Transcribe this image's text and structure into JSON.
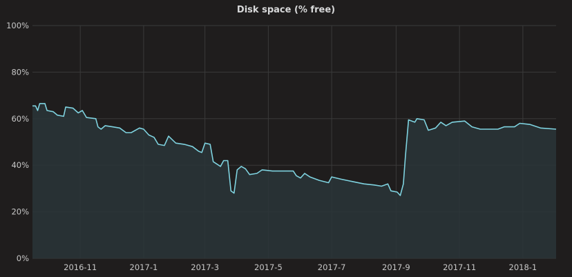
{
  "panel": {
    "title": "Disk space (% free)"
  },
  "colors": {
    "background": "#1f1d1d",
    "grid": "#3a3a3a",
    "line": "#7fd3e0",
    "fill": "#2a3538",
    "text": "#c8c8c8"
  },
  "chart_data": {
    "type": "area",
    "title": "Disk space (% free)",
    "xlabel": "",
    "ylabel": "",
    "grid": true,
    "legend": "none",
    "x_range": [
      "2016-09-16",
      "2018-02-02"
    ],
    "ylim": [
      0,
      100
    ],
    "y_ticks": [
      0,
      20,
      40,
      60,
      80,
      100
    ],
    "y_tick_labels": [
      "0%",
      "20%",
      "40%",
      "60%",
      "80%",
      "100%"
    ],
    "x_ticks": [
      "2016-11-01",
      "2017-01-01",
      "2017-03-01",
      "2017-05-01",
      "2017-07-01",
      "2017-09-01",
      "2017-11-01",
      "2018-01-01"
    ],
    "x_tick_labels": [
      "2016-11",
      "2017-1",
      "2017-3",
      "2017-5",
      "2017-7",
      "2017-9",
      "2017-11",
      "2018-1"
    ],
    "series": [
      {
        "points": [
          [
            "2016-09-16",
            65.5
          ],
          [
            "2016-09-19",
            65.5
          ],
          [
            "2016-09-21",
            63.5
          ],
          [
            "2016-09-23",
            66.5
          ],
          [
            "2016-09-28",
            66.5
          ],
          [
            "2016-09-30",
            63.5
          ],
          [
            "2016-10-06",
            63.0
          ],
          [
            "2016-10-10",
            61.5
          ],
          [
            "2016-10-16",
            61.0
          ],
          [
            "2016-10-18",
            65.0
          ],
          [
            "2016-10-25",
            64.5
          ],
          [
            "2016-10-30",
            62.5
          ],
          [
            "2016-11-03",
            63.5
          ],
          [
            "2016-11-07",
            60.5
          ],
          [
            "2016-11-16",
            60.0
          ],
          [
            "2016-11-18",
            56.5
          ],
          [
            "2016-11-21",
            55.5
          ],
          [
            "2016-11-25",
            57.0
          ],
          [
            "2016-12-02",
            56.5
          ],
          [
            "2016-12-09",
            56.0
          ],
          [
            "2016-12-15",
            54.0
          ],
          [
            "2016-12-20",
            54.0
          ],
          [
            "2016-12-28",
            56.0
          ],
          [
            "2017-01-01",
            55.5
          ],
          [
            "2017-01-06",
            53.0
          ],
          [
            "2017-01-11",
            52.0
          ],
          [
            "2017-01-15",
            49.0
          ],
          [
            "2017-01-21",
            48.5
          ],
          [
            "2017-01-25",
            52.5
          ],
          [
            "2017-02-01",
            49.5
          ],
          [
            "2017-02-09",
            49.0
          ],
          [
            "2017-02-17",
            48.0
          ],
          [
            "2017-02-23",
            46.0
          ],
          [
            "2017-02-26",
            45.5
          ],
          [
            "2017-03-01",
            49.5
          ],
          [
            "2017-03-06",
            49.0
          ],
          [
            "2017-03-09",
            41.5
          ],
          [
            "2017-03-16",
            39.5
          ],
          [
            "2017-03-19",
            42.0
          ],
          [
            "2017-03-23",
            42.0
          ],
          [
            "2017-03-26",
            29.0
          ],
          [
            "2017-03-29",
            28.0
          ],
          [
            "2017-04-01",
            38.0
          ],
          [
            "2017-04-05",
            39.5
          ],
          [
            "2017-04-09",
            38.5
          ],
          [
            "2017-04-13",
            36.0
          ],
          [
            "2017-04-20",
            36.5
          ],
          [
            "2017-04-25",
            38.0
          ],
          [
            "2017-05-05",
            37.5
          ],
          [
            "2017-05-25",
            37.5
          ],
          [
            "2017-05-28",
            35.5
          ],
          [
            "2017-06-01",
            34.5
          ],
          [
            "2017-06-05",
            36.5
          ],
          [
            "2017-06-10",
            35.0
          ],
          [
            "2017-06-19",
            33.5
          ],
          [
            "2017-06-28",
            32.5
          ],
          [
            "2017-07-01",
            35.0
          ],
          [
            "2017-07-10",
            34.0
          ],
          [
            "2017-07-21",
            33.0
          ],
          [
            "2017-08-01",
            32.0
          ],
          [
            "2017-08-11",
            31.5
          ],
          [
            "2017-08-18",
            31.0
          ],
          [
            "2017-08-24",
            32.0
          ],
          [
            "2017-08-27",
            29.0
          ],
          [
            "2017-09-02",
            28.5
          ],
          [
            "2017-09-05",
            27.0
          ],
          [
            "2017-09-08",
            32.0
          ],
          [
            "2017-09-10",
            44.0
          ],
          [
            "2017-09-13",
            59.5
          ],
          [
            "2017-09-19",
            58.5
          ],
          [
            "2017-09-21",
            60.0
          ],
          [
            "2017-09-28",
            59.5
          ],
          [
            "2017-10-02",
            55.0
          ],
          [
            "2017-10-09",
            56.0
          ],
          [
            "2017-10-14",
            58.5
          ],
          [
            "2017-10-19",
            57.0
          ],
          [
            "2017-10-25",
            58.5
          ],
          [
            "2017-11-06",
            59.0
          ],
          [
            "2017-11-13",
            56.5
          ],
          [
            "2017-11-21",
            55.5
          ],
          [
            "2017-12-08",
            55.5
          ],
          [
            "2017-12-14",
            56.5
          ],
          [
            "2017-12-24",
            56.5
          ],
          [
            "2017-12-29",
            58.0
          ],
          [
            "2018-01-08",
            57.5
          ],
          [
            "2018-01-18",
            56.0
          ],
          [
            "2018-02-02",
            55.5
          ]
        ]
      }
    ]
  }
}
